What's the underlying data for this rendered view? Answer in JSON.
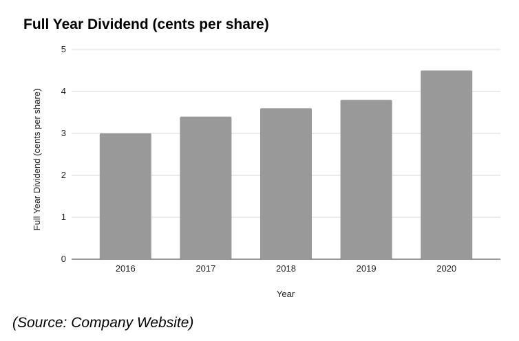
{
  "chart_data": {
    "type": "bar",
    "title": "Full Year Dividend (cents per share)",
    "xlabel": "Year",
    "ylabel": "Full Year Dividend (cents per share)",
    "categories": [
      "2016",
      "2017",
      "2018",
      "2019",
      "2020"
    ],
    "values": [
      3.0,
      3.4,
      3.6,
      3.8,
      4.5
    ],
    "ylim": [
      0,
      5
    ],
    "yticks": [
      "0",
      "1",
      "2",
      "3",
      "4",
      "5"
    ],
    "grid": true,
    "bar_color": "#999999",
    "source": "(Source: Company Website)"
  }
}
